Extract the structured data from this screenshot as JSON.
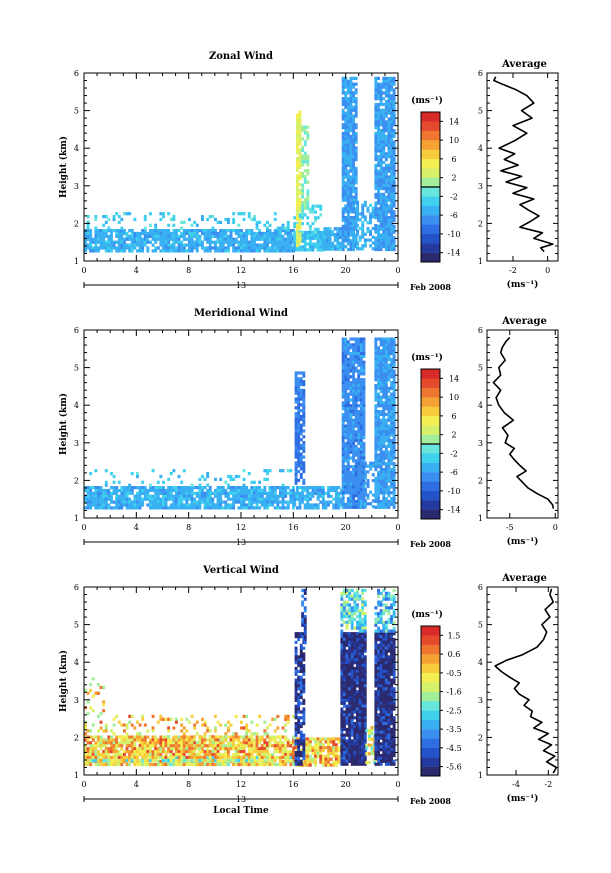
{
  "figure": {
    "date_label": "Feb 2008",
    "x_axis_label": "Local Time",
    "day_label": "13",
    "unit_label": "(ms⁻¹)"
  },
  "chart_data": [
    {
      "type": "heatmap",
      "title": "Zonal Wind",
      "ylabel": "Height (km)",
      "xlabel": "",
      "x_ticks": [
        "0",
        "4",
        "8",
        "12",
        "16",
        "20",
        "0"
      ],
      "y_ticks": [
        "1",
        "2",
        "3",
        "4",
        "5",
        "6"
      ],
      "xlim": [
        0,
        24
      ],
      "ylim": [
        1,
        6
      ],
      "colorbar": {
        "label": "(ms⁻¹)",
        "range": [
          -16,
          16
        ],
        "ticks": [
          "14",
          "10",
          "6",
          "2",
          "-2",
          "-6",
          "-10",
          "-14"
        ],
        "zero_line": true
      },
      "regions": [
        {
          "x0": 0,
          "x1": 16,
          "y0": 1.3,
          "y1": 1.85,
          "v": -5,
          "density": 0.85
        },
        {
          "x0": 0,
          "x1": 16,
          "y0": 1.85,
          "y1": 2.3,
          "v": -3,
          "density": 0.18
        },
        {
          "x0": 16,
          "x1": 18.3,
          "y0": 1.3,
          "y1": 1.8,
          "v": -4,
          "density": 0.9
        },
        {
          "x0": 16,
          "x1": 18,
          "y0": 1.8,
          "y1": 2.5,
          "v": -2,
          "density": 0.4
        },
        {
          "x0": 16.2,
          "x1": 16.6,
          "y0": 1.4,
          "y1": 5.0,
          "v": 4,
          "density": 0.9
        },
        {
          "x0": 16.6,
          "x1": 17.1,
          "y0": 2.4,
          "y1": 4.6,
          "v": 0,
          "density": 0.6
        },
        {
          "x0": 18.3,
          "x1": 19.7,
          "y0": 1.3,
          "y1": 1.9,
          "v": -5,
          "density": 0.85
        },
        {
          "x0": 19.7,
          "x1": 20.8,
          "y0": 1.3,
          "y1": 5.9,
          "v": -6,
          "density": 0.88
        },
        {
          "x0": 20.8,
          "x1": 22.2,
          "y0": 1.3,
          "y1": 2.6,
          "v": -5,
          "density": 0.55
        },
        {
          "x0": 22.2,
          "x1": 23.7,
          "y0": 1.3,
          "y1": 5.9,
          "v": -6,
          "density": 0.88
        }
      ],
      "profile": {
        "title": "Average",
        "xlabel": "(ms⁻¹)",
        "x_ticks": [
          "-2",
          "0"
        ],
        "x_tick_values": [
          -2,
          0
        ],
        "xlim": [
          -3.5,
          0.6
        ],
        "y_ticks": [
          "1",
          "2",
          "3",
          "4",
          "5",
          "6"
        ],
        "ylim": [
          1,
          6
        ],
        "values": [
          -0.2,
          -0.4,
          0.3,
          -0.8,
          -0.3,
          -1.6,
          -1.0,
          -0.5,
          -1.1,
          -1.6,
          -0.8,
          -2.0,
          -1.2,
          -2.4,
          -1.5,
          -2.7,
          -1.7,
          -2.5,
          -1.9,
          -2.8,
          -1.9,
          -1.2,
          -2.0,
          -0.9,
          -1.5,
          -0.8,
          -1.2,
          -1.8,
          -2.6,
          -3.1,
          -3.0
        ],
        "heights": [
          1.25,
          1.35,
          1.45,
          1.6,
          1.75,
          1.9,
          2.05,
          2.2,
          2.35,
          2.5,
          2.65,
          2.8,
          2.95,
          3.1,
          3.25,
          3.4,
          3.55,
          3.7,
          3.85,
          4.0,
          4.2,
          4.4,
          4.6,
          4.8,
          5.0,
          5.2,
          5.4,
          5.55,
          5.7,
          5.8,
          5.9
        ]
      }
    },
    {
      "type": "heatmap",
      "title": "Meridional Wind",
      "ylabel": "Height (km)",
      "xlabel": "",
      "x_ticks": [
        "0",
        "4",
        "8",
        "12",
        "16",
        "20",
        "0"
      ],
      "y_ticks": [
        "1",
        "2",
        "3",
        "4",
        "5",
        "6"
      ],
      "xlim": [
        0,
        24
      ],
      "ylim": [
        1,
        6
      ],
      "colorbar": {
        "label": "(ms⁻¹)",
        "range": [
          -16,
          16
        ],
        "ticks": [
          "14",
          "10",
          "6",
          "2",
          "-2",
          "-6",
          "-10",
          "-14"
        ],
        "zero_line": true
      },
      "regions": [
        {
          "x0": 0,
          "x1": 16,
          "y0": 1.3,
          "y1": 1.85,
          "v": -5,
          "density": 0.85
        },
        {
          "x0": 0,
          "x1": 16,
          "y0": 1.85,
          "y1": 2.3,
          "v": -3,
          "density": 0.15
        },
        {
          "x0": 16,
          "x1": 19.7,
          "y0": 1.3,
          "y1": 1.85,
          "v": -5,
          "density": 0.85
        },
        {
          "x0": 16.1,
          "x1": 16.8,
          "y0": 1.9,
          "y1": 4.9,
          "v": -8,
          "density": 0.8
        },
        {
          "x0": 19.7,
          "x1": 21.4,
          "y0": 1.3,
          "y1": 5.8,
          "v": -7,
          "density": 0.95
        },
        {
          "x0": 21.4,
          "x1": 22.2,
          "y0": 1.3,
          "y1": 2.5,
          "v": -6,
          "density": 0.5
        },
        {
          "x0": 22.2,
          "x1": 23.7,
          "y0": 1.3,
          "y1": 5.8,
          "v": -6,
          "density": 0.9
        }
      ],
      "profile": {
        "title": "Average",
        "xlabel": "(ms⁻¹)",
        "x_ticks": [
          "-5",
          "0"
        ],
        "x_tick_values": [
          -5,
          0
        ],
        "xlim": [
          -7.5,
          0.3
        ],
        "y_ticks": [
          "1",
          "2",
          "3",
          "4",
          "5",
          "6"
        ],
        "ylim": [
          1,
          6
        ],
        "values": [
          -0.2,
          -0.3,
          -0.8,
          -2.0,
          -3.0,
          -3.6,
          -4.2,
          -3.2,
          -3.9,
          -4.5,
          -5.0,
          -4.5,
          -5.5,
          -5.2,
          -5.8,
          -4.6,
          -5.6,
          -6.2,
          -6.5,
          -6.0,
          -6.8,
          -6.0,
          -6.2,
          -5.5,
          -6.0,
          -5.8,
          -5.4,
          -5.0
        ],
        "heights": [
          1.25,
          1.35,
          1.5,
          1.65,
          1.8,
          1.95,
          2.1,
          2.25,
          2.4,
          2.55,
          2.7,
          2.85,
          3.0,
          3.2,
          3.4,
          3.6,
          3.8,
          4.0,
          4.2,
          4.4,
          4.6,
          4.8,
          5.0,
          5.2,
          5.4,
          5.55,
          5.7,
          5.8
        ]
      }
    },
    {
      "type": "heatmap",
      "title": "Vertical Wind",
      "ylabel": "Height (km)",
      "xlabel": "Local Time",
      "x_ticks": [
        "0",
        "4",
        "8",
        "12",
        "16",
        "20",
        "0"
      ],
      "y_ticks": [
        "1",
        "2",
        "3",
        "4",
        "5",
        "6"
      ],
      "xlim": [
        0,
        24
      ],
      "ylim": [
        1,
        6
      ],
      "colorbar": {
        "label": "(ms⁻¹)",
        "range": [
          -6,
          2
        ],
        "ticks": [
          "1.5",
          "0.6",
          "-0.5",
          "-1.6",
          "-2.5",
          "-3.5",
          "-4.5",
          "-5.6"
        ],
        "zero_line": false
      },
      "regions": [
        {
          "x0": 0,
          "x1": 16,
          "y0": 1.25,
          "y1": 1.4,
          "v": -0.7,
          "density": 0.9
        },
        {
          "x0": 0,
          "x1": 16,
          "y0": 1.4,
          "y1": 1.5,
          "v": -1.4,
          "density": 0.9
        },
        {
          "x0": 0,
          "x1": 16,
          "y0": 1.5,
          "y1": 2.05,
          "v": -0.2,
          "density": 0.85
        },
        {
          "x0": 0,
          "x1": 16,
          "y0": 2.05,
          "y1": 2.6,
          "v": -0.4,
          "density": 0.2
        },
        {
          "x0": 0,
          "x1": 1.5,
          "y0": 2.6,
          "y1": 3.6,
          "v": -0.5,
          "density": 0.2
        },
        {
          "x0": 16,
          "x1": 19.7,
          "y0": 1.3,
          "y1": 2.0,
          "v": -0.2,
          "density": 0.8
        },
        {
          "x0": 16.1,
          "x1": 16.8,
          "y0": 1.3,
          "y1": 4.8,
          "v": -5.5,
          "density": 0.75
        },
        {
          "x0": 16.6,
          "x1": 17.0,
          "y0": 4.5,
          "y1": 5.95,
          "v": -4.5,
          "density": 0.7
        },
        {
          "x0": 19.6,
          "x1": 21.5,
          "y0": 1.3,
          "y1": 4.8,
          "v": -5.8,
          "density": 0.97
        },
        {
          "x0": 19.6,
          "x1": 21.5,
          "y0": 4.8,
          "y1": 5.95,
          "v": -2.5,
          "density": 0.75
        },
        {
          "x0": 21.5,
          "x1": 22.4,
          "y0": 1.3,
          "y1": 2.3,
          "v": -1.0,
          "density": 0.6
        },
        {
          "x0": 22.2,
          "x1": 23.7,
          "y0": 1.3,
          "y1": 4.8,
          "v": -5.8,
          "density": 0.95
        },
        {
          "x0": 22.2,
          "x1": 23.7,
          "y0": 4.8,
          "y1": 5.95,
          "v": -3.0,
          "density": 0.7
        }
      ],
      "profile": {
        "title": "Average",
        "xlabel": "(ms⁻¹)",
        "x_ticks": [
          "-4",
          "-2"
        ],
        "x_tick_values": [
          -4,
          -2
        ],
        "xlim": [
          -5.8,
          -1.4
        ],
        "y_ticks": [
          "1",
          "2",
          "3",
          "4",
          "5",
          "6"
        ],
        "ylim": [
          1,
          6
        ],
        "values": [
          -1.7,
          -1.5,
          -2.1,
          -1.6,
          -2.3,
          -1.8,
          -2.6,
          -2.0,
          -2.9,
          -2.4,
          -3.1,
          -3.0,
          -3.5,
          -3.2,
          -3.8,
          -4.1,
          -3.8,
          -4.4,
          -4.9,
          -5.3,
          -4.6,
          -3.6,
          -2.7,
          -2.3,
          -2.1,
          -2.4,
          -1.9,
          -2.2,
          -1.7,
          -1.9,
          -1.8
        ],
        "heights": [
          1.05,
          1.2,
          1.35,
          1.5,
          1.65,
          1.8,
          1.95,
          2.1,
          2.25,
          2.4,
          2.55,
          2.7,
          2.85,
          3.0,
          3.15,
          3.3,
          3.45,
          3.6,
          3.75,
          3.9,
          4.05,
          4.2,
          4.4,
          4.6,
          4.8,
          5.0,
          5.2,
          5.4,
          5.6,
          5.8,
          5.95
        ]
      }
    }
  ]
}
